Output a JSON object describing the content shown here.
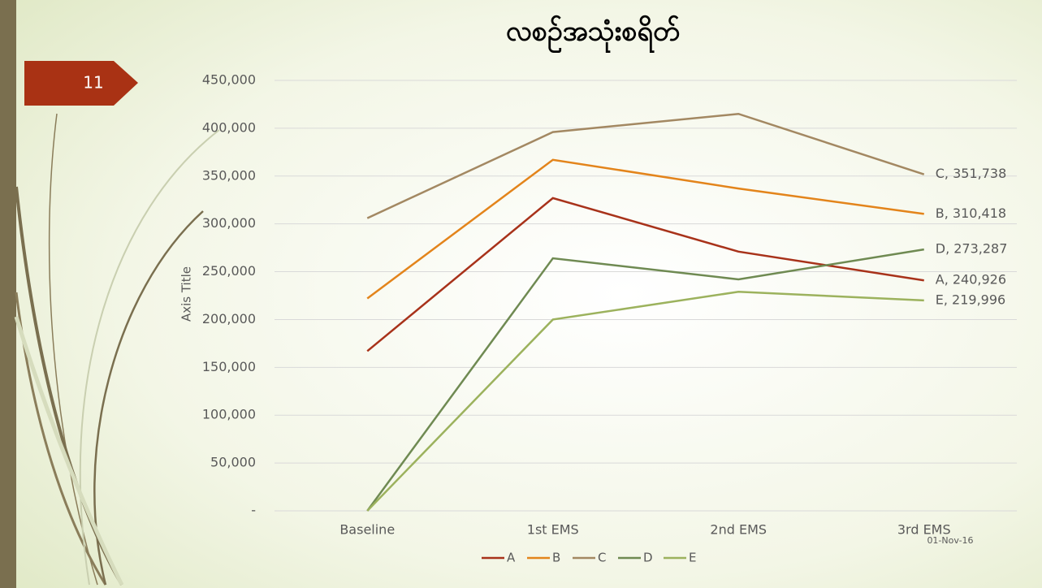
{
  "slide_number": "11",
  "date": "01-Nov-16",
  "chart_data": {
    "type": "line",
    "title": "လစဉ်အသုံးစရိတ်",
    "y_label": "Axis Title",
    "categories": [
      "Baseline",
      "1st EMS",
      "2nd EMS",
      "3rd EMS"
    ],
    "series": [
      {
        "name": "A",
        "color": "#a8321a",
        "values": [
          167000,
          327000,
          271000,
          240926
        ],
        "value_labels": [
          null,
          null,
          null,
          "A, 240,926"
        ]
      },
      {
        "name": "B",
        "color": "#e3841b",
        "values": [
          222000,
          367000,
          337000,
          310418
        ],
        "value_labels": [
          null,
          null,
          null,
          "B, 310,418"
        ]
      },
      {
        "name": "C",
        "color": "#a38862",
        "values": [
          306000,
          396000,
          415000,
          351738
        ],
        "value_labels": [
          null,
          null,
          null,
          "C, 351,738"
        ]
      },
      {
        "name": "D",
        "color": "#6f8a52",
        "values": [
          0,
          264000,
          242000,
          273287
        ],
        "value_labels": [
          null,
          null,
          null,
          "D, 273,287"
        ]
      },
      {
        "name": "E",
        "color": "#9cb25d",
        "values": [
          0,
          200000,
          229000,
          219996
        ],
        "value_labels": [
          null,
          null,
          null,
          "E, 219,996"
        ]
      }
    ],
    "ylim": [
      0,
      450000
    ],
    "yticks": [
      {
        "value": 0,
        "label": "-"
      },
      {
        "value": 50000,
        "label": "50,000"
      },
      {
        "value": 100000,
        "label": "100,000"
      },
      {
        "value": 150000,
        "label": "150,000"
      },
      {
        "value": 200000,
        "label": "200,000"
      },
      {
        "value": 250000,
        "label": "250,000"
      },
      {
        "value": 300000,
        "label": "300,000"
      },
      {
        "value": 350000,
        "label": "350,000"
      },
      {
        "value": 400000,
        "label": "400,000"
      },
      {
        "value": 450000,
        "label": "450,000"
      }
    ],
    "grid": true,
    "legend": "bottom"
  }
}
